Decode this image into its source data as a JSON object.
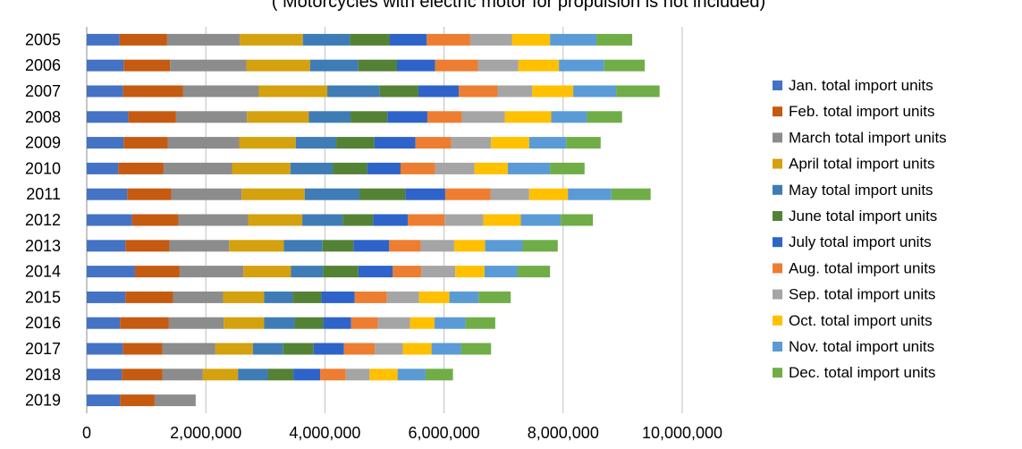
{
  "chart_data": {
    "type": "bar",
    "orientation": "horizontal",
    "stacked": true,
    "subtitle": "( Motorcycles with electric motor for propulsion  is not included)",
    "categories": [
      "2005",
      "2006",
      "2007",
      "2008",
      "2009",
      "2010",
      "2011",
      "2012",
      "2013",
      "2014",
      "2015",
      "2016",
      "2017",
      "2018",
      "2019"
    ],
    "x_ticks": [
      "0",
      "2,000,000",
      "4,000,000",
      "6,000,000",
      "8,000,000",
      "10,000,000"
    ],
    "xlim": [
      0,
      10000000
    ],
    "grid": "vertical major gridlines",
    "legend_position": "right",
    "series": [
      {
        "name": "Jan. total import units",
        "color": "#4472C4",
        "values": [
          550000,
          620000,
          610000,
          700000,
          620000,
          530000,
          680000,
          760000,
          650000,
          810000,
          650000,
          560000,
          610000,
          590000,
          560000
        ]
      },
      {
        "name": "Feb. total import units",
        "color": "#C55A11",
        "values": [
          800000,
          780000,
          1010000,
          800000,
          740000,
          760000,
          740000,
          780000,
          740000,
          750000,
          800000,
          820000,
          660000,
          680000,
          580000
        ]
      },
      {
        "name": "March total import units",
        "color": "#8C8C8C",
        "values": [
          1220000,
          1280000,
          1270000,
          1190000,
          1200000,
          1150000,
          1180000,
          1170000,
          1000000,
          1070000,
          840000,
          920000,
          890000,
          680000,
          690000
        ]
      },
      {
        "name": "April total import units",
        "color": "#D4A10F",
        "values": [
          1060000,
          1070000,
          1150000,
          1040000,
          950000,
          980000,
          1060000,
          910000,
          920000,
          800000,
          690000,
          680000,
          630000,
          590000,
          0
        ]
      },
      {
        "name": "May total import units",
        "color": "#3F7CB5",
        "values": [
          790000,
          810000,
          880000,
          700000,
          680000,
          710000,
          920000,
          680000,
          650000,
          540000,
          480000,
          510000,
          510000,
          500000,
          0
        ]
      },
      {
        "name": "June total import units",
        "color": "#548235",
        "values": [
          670000,
          650000,
          650000,
          620000,
          640000,
          580000,
          770000,
          510000,
          520000,
          590000,
          480000,
          480000,
          510000,
          430000,
          0
        ]
      },
      {
        "name": "July total import units",
        "color": "#2E63C9",
        "values": [
          620000,
          640000,
          680000,
          670000,
          690000,
          560000,
          670000,
          580000,
          600000,
          580000,
          560000,
          470000,
          510000,
          450000,
          0
        ]
      },
      {
        "name": "Aug. total import units",
        "color": "#ED7D31",
        "values": [
          730000,
          720000,
          650000,
          580000,
          600000,
          580000,
          760000,
          620000,
          530000,
          480000,
          540000,
          450000,
          520000,
          430000,
          0
        ]
      },
      {
        "name": "Sep. total import units",
        "color": "#A5A5A5",
        "values": [
          700000,
          680000,
          580000,
          720000,
          670000,
          660000,
          650000,
          650000,
          560000,
          570000,
          540000,
          540000,
          470000,
          400000,
          0
        ]
      },
      {
        "name": "Oct. total import units",
        "color": "#FFC000",
        "values": [
          640000,
          680000,
          690000,
          780000,
          640000,
          560000,
          650000,
          630000,
          520000,
          490000,
          510000,
          410000,
          480000,
          470000,
          0
        ]
      },
      {
        "name": "Nov. total import units",
        "color": "#5B9BD5",
        "values": [
          780000,
          760000,
          720000,
          600000,
          620000,
          710000,
          730000,
          670000,
          630000,
          550000,
          490000,
          520000,
          500000,
          470000,
          0
        ]
      },
      {
        "name": "Dec. total import units",
        "color": "#70AD47",
        "values": [
          600000,
          680000,
          730000,
          590000,
          580000,
          580000,
          660000,
          540000,
          590000,
          550000,
          540000,
          500000,
          500000,
          460000,
          0
        ]
      }
    ]
  }
}
